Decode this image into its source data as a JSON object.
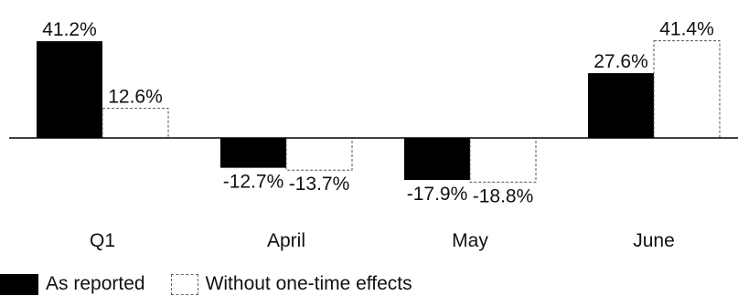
{
  "chart_data": {
    "type": "bar",
    "categories": [
      "Q1",
      "April",
      "May",
      "June"
    ],
    "series": [
      {
        "name": "As reported",
        "values": [
          41.2,
          -12.7,
          -17.9,
          27.6
        ],
        "labels": [
          "41.2%",
          "-12.7%",
          "-17.9%",
          "27.6%"
        ],
        "color": "#000000",
        "style": "solid"
      },
      {
        "name": "Without one-time effects",
        "values": [
          12.6,
          -13.7,
          -18.8,
          41.4
        ],
        "labels": [
          "12.6%",
          "-13.7%",
          "-18.8%",
          "41.4%"
        ],
        "color": "#ffffff",
        "style": "dashed"
      }
    ],
    "ylim": [
      -18.8,
      41.4
    ],
    "grid": false,
    "legend": "bottom-left"
  }
}
